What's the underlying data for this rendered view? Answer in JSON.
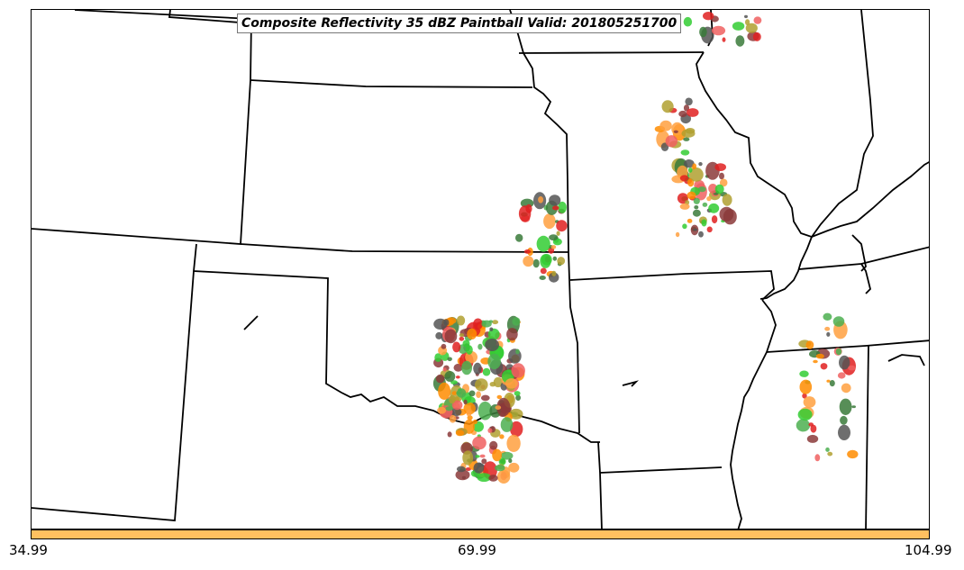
{
  "title": "Composite Reflectivity 35 dBZ Paintball Valid: 201805251700",
  "colorbar": {
    "color": "#ffc060",
    "ticks": [
      "34.99",
      "69.99",
      "104.99"
    ]
  },
  "map": {
    "type": "paintball",
    "background": "#ffffff",
    "boundary_color": "#000000",
    "member_colors": [
      "#8b3a3a",
      "#3a7a3a",
      "#4caf50",
      "#b0a030",
      "#ff8c00",
      "#ffa040",
      "#e02020",
      "#555555",
      "#f06060",
      "#33cc33"
    ]
  }
}
